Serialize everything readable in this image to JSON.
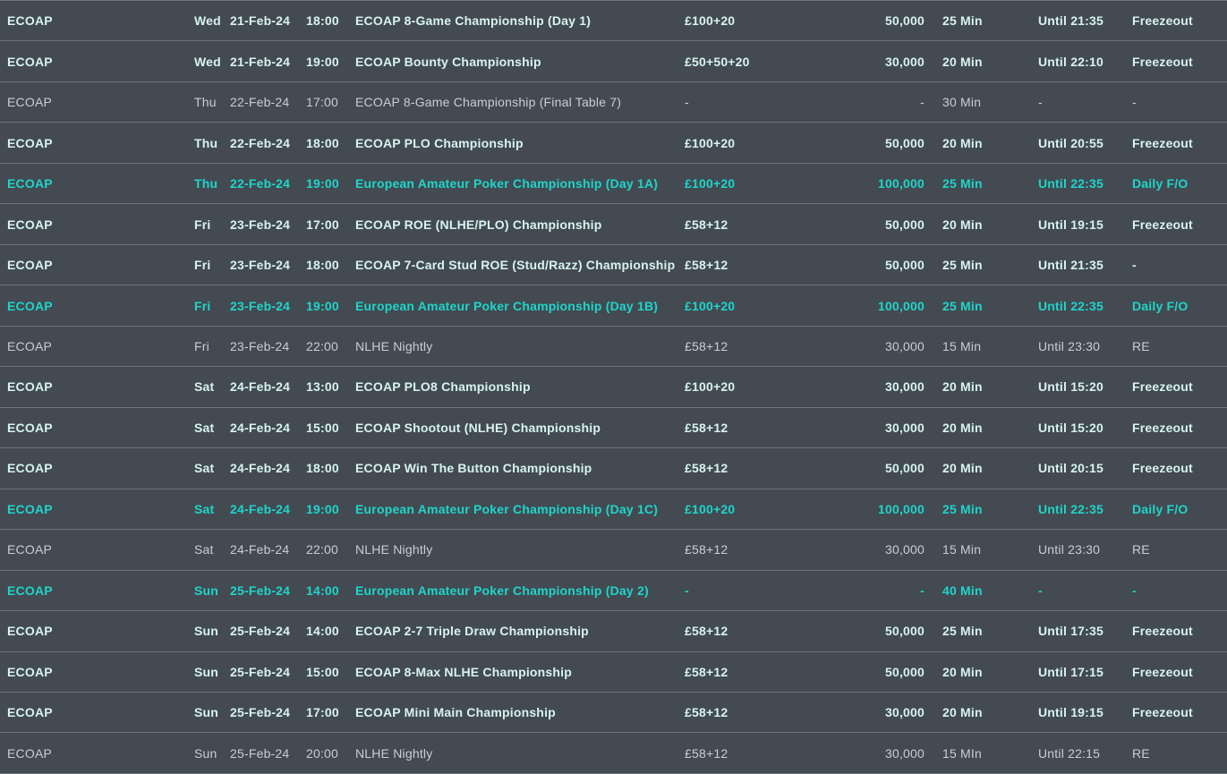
{
  "colors": {
    "row_background": "#434a52",
    "separator": "#6b7178",
    "text_primary": "#d7f3ef",
    "text_highlight": "#1fd5c9",
    "text_muted": "#c9ced3"
  },
  "schedule": {
    "rows": [
      {
        "series": "ECOAP",
        "day": "Wed",
        "date": "21-Feb-24",
        "time": "18:00",
        "name": "ECOAP 8-Game Championship (Day 1)",
        "buyin": "£100+20",
        "chips": "50,000",
        "levels": "25 Min",
        "late_reg": "Until 21:35",
        "type": "Freezeout",
        "style": "featured"
      },
      {
        "series": "ECOAP",
        "day": "Wed",
        "date": "21-Feb-24",
        "time": "19:00",
        "name": "ECOAP Bounty Championship",
        "buyin": "£50+50+20",
        "chips": "30,000",
        "levels": "20 Min",
        "late_reg": "Until 22:10",
        "type": "Freezeout",
        "style": "featured"
      },
      {
        "series": "ECOAP",
        "day": "Thu",
        "date": "22-Feb-24",
        "time": "17:00",
        "name": "ECOAP 8-Game Championship (Final Table 7)",
        "buyin": "-",
        "chips": "-",
        "levels": "30 Min",
        "late_reg": "-",
        "type": "-",
        "style": "muted"
      },
      {
        "series": "ECOAP",
        "day": "Thu",
        "date": "22-Feb-24",
        "time": "18:00",
        "name": "ECOAP PLO Championship",
        "buyin": "£100+20",
        "chips": "50,000",
        "levels": "20 Min",
        "late_reg": "Until 20:55",
        "type": "Freezeout",
        "style": "featured"
      },
      {
        "series": "ECOAP",
        "day": "Thu",
        "date": "22-Feb-24",
        "time": "19:00",
        "name": "European Amateur Poker Championship (Day 1A)",
        "buyin": "£100+20",
        "chips": "100,000",
        "levels": "25 Min",
        "late_reg": "Until 22:35",
        "type": "Daily F/O",
        "style": "highlight"
      },
      {
        "series": "ECOAP",
        "day": "Fri",
        "date": "23-Feb-24",
        "time": "17:00",
        "name": "ECOAP ROE (NLHE/PLO) Championship",
        "buyin": "£58+12",
        "chips": "50,000",
        "levels": "20 Min",
        "late_reg": "Until 19:15",
        "type": "Freezeout",
        "style": "featured"
      },
      {
        "series": "ECOAP",
        "day": "Fri",
        "date": "23-Feb-24",
        "time": "18:00",
        "name": "ECOAP 7-Card Stud ROE (Stud/Razz) Championship",
        "buyin": "£58+12",
        "chips": "50,000",
        "levels": "25 Min",
        "late_reg": "Until 21:35",
        "type": "-",
        "style": "featured"
      },
      {
        "series": "ECOAP",
        "day": "Fri",
        "date": "23-Feb-24",
        "time": "19:00",
        "name": "European Amateur Poker Championship (Day 1B)",
        "buyin": "£100+20",
        "chips": "100,000",
        "levels": "25 Min",
        "late_reg": "Until 22:35",
        "type": "Daily F/O",
        "style": "highlight"
      },
      {
        "series": "ECOAP",
        "day": "Fri",
        "date": "23-Feb-24",
        "time": "22:00",
        "name": "NLHE Nightly",
        "buyin": "£58+12",
        "chips": "30,000",
        "levels": "15 Min",
        "late_reg": "Until 23:30",
        "type": "RE",
        "style": "muted"
      },
      {
        "series": "ECOAP",
        "day": "Sat",
        "date": "24-Feb-24",
        "time": "13:00",
        "name": "ECOAP PLO8 Championship",
        "buyin": "£100+20",
        "chips": "30,000",
        "levels": "20 Min",
        "late_reg": "Until 15:20",
        "type": "Freezeout",
        "style": "featured"
      },
      {
        "series": "ECOAP",
        "day": "Sat",
        "date": "24-Feb-24",
        "time": "15:00",
        "name": "ECOAP Shootout (NLHE) Championship",
        "buyin": "£58+12",
        "chips": "30,000",
        "levels": "20 Min",
        "late_reg": "Until 15:20",
        "type": "Freezeout",
        "style": "featured"
      },
      {
        "series": "ECOAP",
        "day": "Sat",
        "date": "24-Feb-24",
        "time": "18:00",
        "name": "ECOAP Win The Button Championship",
        "buyin": "£58+12",
        "chips": "50,000",
        "levels": "20 Min",
        "late_reg": "Until 20:15",
        "type": "Freezeout",
        "style": "featured"
      },
      {
        "series": "ECOAP",
        "day": "Sat",
        "date": "24-Feb-24",
        "time": "19:00",
        "name": "European Amateur Poker Championship (Day 1C)",
        "buyin": "£100+20",
        "chips": "100,000",
        "levels": "25 Min",
        "late_reg": "Until 22:35",
        "type": "Daily F/O",
        "style": "highlight"
      },
      {
        "series": "ECOAP",
        "day": "Sat",
        "date": "24-Feb-24",
        "time": "22:00",
        "name": "NLHE Nightly",
        "buyin": "£58+12",
        "chips": "30,000",
        "levels": "15 Min",
        "late_reg": "Until 23:30",
        "type": "RE",
        "style": "muted"
      },
      {
        "series": "ECOAP",
        "day": "Sun",
        "date": "25-Feb-24",
        "time": "14:00",
        "name": "European Amateur Poker Championship (Day 2)",
        "buyin": "-",
        "chips": "-",
        "levels": "40 Min",
        "late_reg": "-",
        "type": "-",
        "style": "highlight"
      },
      {
        "series": "ECOAP",
        "day": "Sun",
        "date": "25-Feb-24",
        "time": "14:00",
        "name": "ECOAP 2-7 Triple Draw Championship",
        "buyin": "£58+12",
        "chips": "50,000",
        "levels": "25 Min",
        "late_reg": "Until 17:35",
        "type": "Freezeout",
        "style": "featured"
      },
      {
        "series": "ECOAP",
        "day": "Sun",
        "date": "25-Feb-24",
        "time": "15:00",
        "name": "ECOAP 8-Max NLHE Championship",
        "buyin": "£58+12",
        "chips": "50,000",
        "levels": "20 Min",
        "late_reg": "Until 17:15",
        "type": "Freezeout",
        "style": "featured"
      },
      {
        "series": "ECOAP",
        "day": "Sun",
        "date": "25-Feb-24",
        "time": "17:00",
        "name": "ECOAP Mini Main Championship",
        "buyin": "£58+12",
        "chips": "30,000",
        "levels": "20 Min",
        "late_reg": "Until 19:15",
        "type": "Freezeout",
        "style": "featured"
      },
      {
        "series": "ECOAP",
        "day": "Sun",
        "date": "25-Feb-24",
        "time": "20:00",
        "name": "NLHE Nightly",
        "buyin": "£58+12",
        "chips": "30,000",
        "levels": "15 MIn",
        "late_reg": "Until 22:15",
        "type": "RE",
        "style": "muted"
      }
    ]
  }
}
